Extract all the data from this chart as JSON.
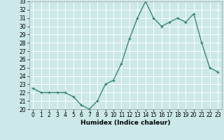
{
  "x": [
    0,
    1,
    2,
    3,
    4,
    5,
    6,
    7,
    8,
    9,
    10,
    11,
    12,
    13,
    14,
    15,
    16,
    17,
    18,
    19,
    20,
    21,
    22,
    23
  ],
  "y": [
    22.5,
    22.0,
    22.0,
    22.0,
    22.0,
    21.5,
    20.5,
    20.0,
    21.0,
    23.0,
    23.5,
    25.5,
    28.5,
    31.0,
    33.0,
    31.0,
    30.0,
    30.5,
    31.0,
    30.5,
    31.5,
    28.0,
    25.0,
    24.5
  ],
  "xlabel": "Humidex (Indice chaleur)",
  "ylim": [
    20,
    33
  ],
  "xlim": [
    -0.5,
    23.5
  ],
  "yticks": [
    20,
    21,
    22,
    23,
    24,
    25,
    26,
    27,
    28,
    29,
    30,
    31,
    32,
    33
  ],
  "xticks": [
    0,
    1,
    2,
    3,
    4,
    5,
    6,
    7,
    8,
    9,
    10,
    11,
    12,
    13,
    14,
    15,
    16,
    17,
    18,
    19,
    20,
    21,
    22,
    23
  ],
  "line_color": "#2e7d6e",
  "marker_color": "#2e7d6e",
  "bg_color": "#cce8e8",
  "grid_color": "#ffffff",
  "tick_fontsize": 5.5,
  "xlabel_fontsize": 6.5
}
